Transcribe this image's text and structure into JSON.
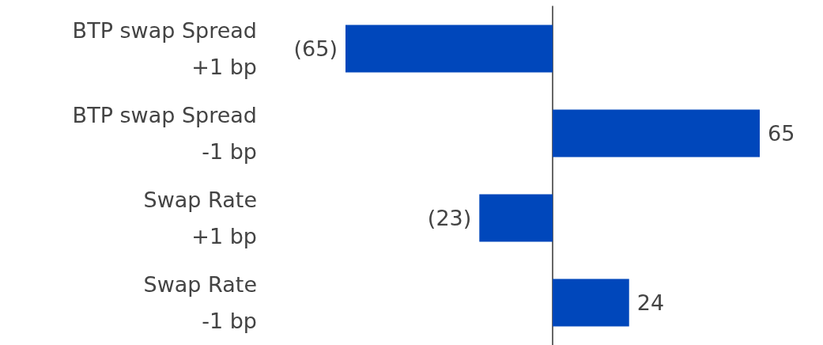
{
  "chart_data": {
    "type": "bar",
    "orientation": "horizontal",
    "categories": [
      "BTP swap Spread\n+1 bp",
      "BTP swap Spread\n-1 bp",
      "Swap Rate\n+1 bp",
      "Swap Rate\n-1 bp"
    ],
    "values": [
      -65,
      65,
      -23,
      24
    ],
    "value_labels": [
      "(65)",
      "65",
      "(23)",
      "24"
    ],
    "color": "#0047bb",
    "xlim": [
      -65,
      65
    ],
    "grid": false
  }
}
